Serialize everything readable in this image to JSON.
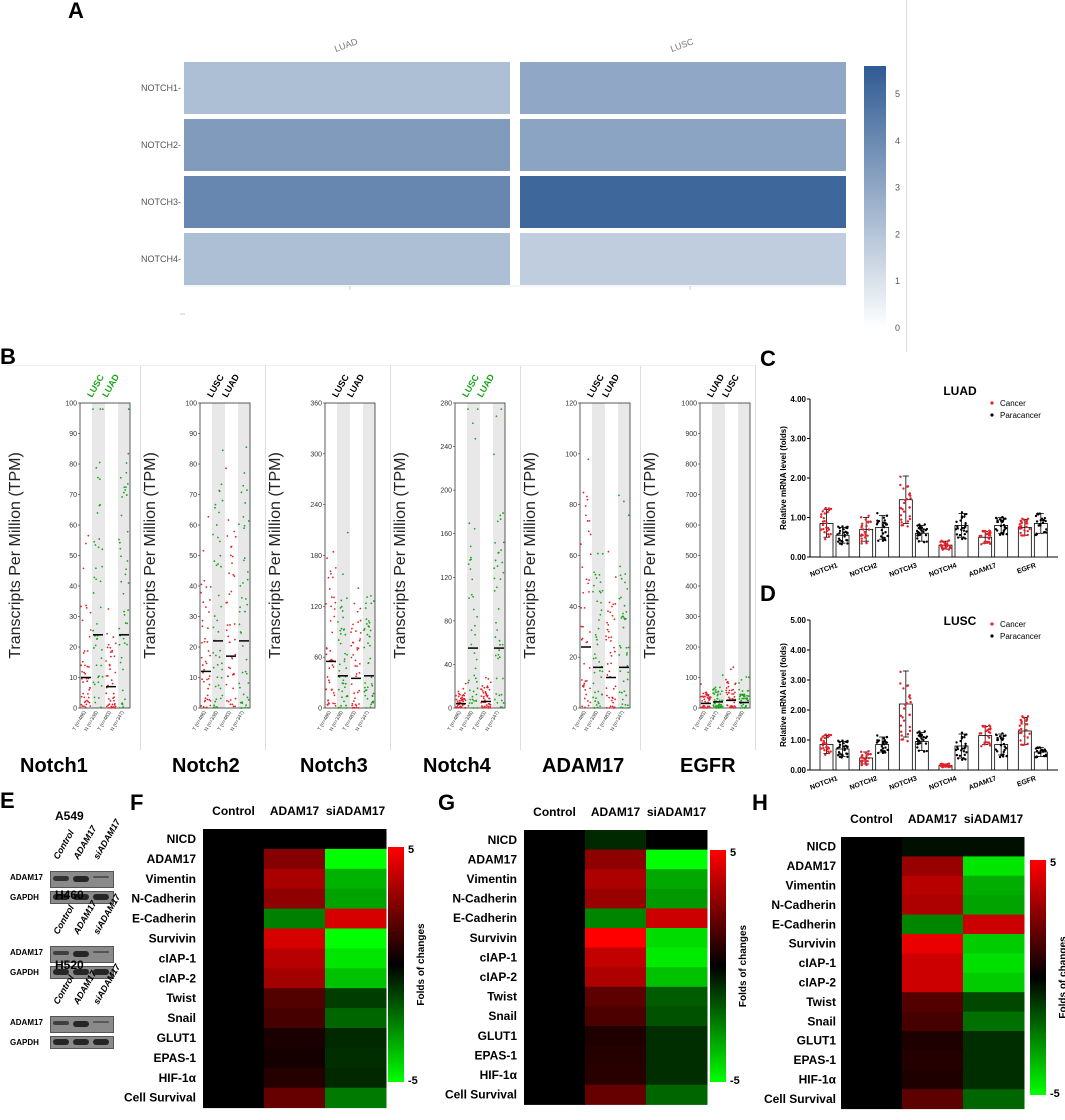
{
  "panel_labels": {
    "A": "A",
    "B": "B",
    "C": "C",
    "D": "D",
    "E": "E",
    "F": "F",
    "G": "G",
    "H": "H"
  },
  "chart_data": [
    {
      "panel": "A",
      "type": "heatmap",
      "columns": [
        "LUAD",
        "LUSC"
      ],
      "rows": [
        "NOTCH1",
        "NOTCH2",
        "NOTCH3",
        "NOTCH4"
      ],
      "values": [
        [
          2.2,
          3.0
        ],
        [
          3.4,
          3.1
        ],
        [
          4.1,
          5.2
        ],
        [
          2.2,
          1.7
        ]
      ],
      "colorbar": {
        "ticks": [
          "5",
          "4",
          "3",
          "2",
          "1",
          "0"
        ],
        "range": [
          0,
          5.6
        ],
        "low_color": "#ffffff",
        "high_color": "#2f5b93"
      }
    },
    {
      "panel": "B",
      "type": "scatter",
      "ylabel": "Transcripts Per Million (TPM)",
      "subplots": [
        {
          "gene": "Notch1",
          "groups": [
            "LUSC",
            "LUAD"
          ],
          "group_color": "#1aa51a",
          "yticks": [
            "0",
            "10",
            "20",
            "30",
            "40",
            "50",
            "60",
            "70",
            "80",
            "90",
            "100"
          ],
          "ymax": 100,
          "medians": [
            10,
            24,
            7,
            24
          ],
          "xticks": [
            "T (n=486)",
            "N (n=338)",
            "T (n=483)",
            "N (n=347)"
          ]
        },
        {
          "gene": "Notch2",
          "groups": [
            "LUSC",
            "LUAD"
          ],
          "group_color": "#000000",
          "yticks": [
            "0",
            "10",
            "20",
            "30",
            "40",
            "50",
            "60",
            "70",
            "80",
            "90",
            "100"
          ],
          "ymax": 100,
          "medians": [
            12,
            22,
            17,
            22
          ],
          "xticks": [
            "T (n=486)",
            "N (n=338)",
            "T (n=483)",
            "N (n=347)"
          ]
        },
        {
          "gene": "Notch3",
          "groups": [
            "LUSC",
            "LUAD"
          ],
          "group_color": "#000000",
          "yticks": [
            "0",
            "60",
            "120",
            "180",
            "240",
            "300",
            "360"
          ],
          "ymax": 360,
          "medians": [
            55,
            38,
            35,
            38
          ],
          "xticks": [
            "T (n=486)",
            "N (n=338)",
            "T (n=483)",
            "N (n=347)"
          ]
        },
        {
          "gene": "Notch4",
          "groups": [
            "LUSC",
            "LUAD"
          ],
          "group_color": "#1aa51a",
          "yticks": [
            "0",
            "40",
            "80",
            "120",
            "160",
            "200",
            "240",
            "280"
          ],
          "ymax": 280,
          "medians": [
            4,
            55,
            6,
            55
          ],
          "xticks": [
            "T (n=486)",
            "N (n=338)",
            "T (n=483)",
            "N (n=347)"
          ]
        },
        {
          "gene": "ADAM17",
          "groups": [
            "LUSC",
            "LUAD"
          ],
          "group_color": "#000000",
          "yticks": [
            "0",
            "20",
            "40",
            "60",
            "80",
            "100",
            "120"
          ],
          "ymax": 120,
          "medians": [
            24,
            16,
            12,
            16
          ],
          "xticks": [
            "T (n=486)",
            "N (n=338)",
            "T (n=483)",
            "N (n=347)"
          ]
        },
        {
          "gene": "EGFR",
          "groups": [
            "LUAD",
            "LUSC"
          ],
          "group_color": "#000000",
          "yticks": [
            "0",
            "100",
            "200",
            "300",
            "400",
            "500",
            "600",
            "700",
            "800",
            "900",
            "1000"
          ],
          "ymax": 1000,
          "medians": [
            15,
            20,
            25,
            18
          ],
          "xticks": [
            "T (n=483)",
            "N (n=347)",
            "T (n=486)",
            "N (n=338)"
          ]
        }
      ]
    },
    {
      "panel": "C",
      "type": "bar",
      "title": "LUAD",
      "ylabel": "Relative mRNA level (folds)",
      "categories": [
        "NOTCH1",
        "NOTCH2",
        "NOTCH3",
        "NOTCH4",
        "ADAM17",
        "EGFR"
      ],
      "yticks": [
        "0.00",
        "1.00",
        "2.00",
        "3.00",
        "4.00"
      ],
      "ylim": [
        0,
        4
      ],
      "series": [
        {
          "name": "Cancer",
          "color": "#e8202a",
          "values": [
            0.85,
            0.7,
            1.45,
            0.3,
            0.5,
            0.75
          ],
          "errors": [
            0.35,
            0.3,
            0.6,
            0.1,
            0.15,
            0.2
          ]
        },
        {
          "name": "Paracancer",
          "color": "#000000",
          "values": [
            0.55,
            0.75,
            0.6,
            0.8,
            0.8,
            0.85
          ],
          "errors": [
            0.2,
            0.3,
            0.2,
            0.3,
            0.2,
            0.25
          ]
        }
      ]
    },
    {
      "panel": "D",
      "type": "bar",
      "title": "LUSC",
      "ylabel": "Relative mRNA level (folds)",
      "categories": [
        "NOTCH1",
        "NOTCH2",
        "NOTCH3",
        "NOTCH4",
        "ADAM17",
        "EGFR"
      ],
      "yticks": [
        "0.00",
        "1.00",
        "2.00",
        "3.00",
        "4.00",
        "5.00"
      ],
      "ylim": [
        0,
        5
      ],
      "series": [
        {
          "name": "Cancer",
          "color": "#e8202a",
          "values": [
            0.85,
            0.4,
            2.2,
            0.15,
            1.15,
            1.3
          ],
          "errors": [
            0.3,
            0.2,
            1.1,
            0.05,
            0.3,
            0.45
          ]
        },
        {
          "name": "Paracancer",
          "color": "#000000",
          "values": [
            0.7,
            0.85,
            0.95,
            0.8,
            0.85,
            0.6
          ],
          "errors": [
            0.25,
            0.25,
            0.3,
            0.4,
            0.35,
            0.15
          ]
        }
      ]
    },
    {
      "panel": "F",
      "type": "heatmap",
      "columns": [
        "Control",
        "ADAM17",
        "siADAM17"
      ],
      "rows": [
        "NICD",
        "ADAM17",
        "Vimentin",
        "N-Cadherin",
        "E-Cadherin",
        "Survivin",
        "cIAP-1",
        "cIAP-2",
        "Twist",
        "Snail",
        "GLUT1",
        "EPAS-1",
        "HIF-1α",
        "Cell Survival"
      ],
      "values": [
        [
          0,
          0,
          0
        ],
        [
          0,
          2.6,
          -5
        ],
        [
          0,
          3.3,
          -3.5
        ],
        [
          0,
          2.8,
          -3.2
        ],
        [
          0,
          -2.5,
          4.2
        ],
        [
          0,
          4.2,
          -5
        ],
        [
          0,
          3.6,
          -4.5
        ],
        [
          0,
          3.2,
          -3.8
        ],
        [
          0,
          1.6,
          -1.2
        ],
        [
          0,
          1.4,
          -2.0
        ],
        [
          0,
          0.5,
          -0.8
        ],
        [
          0,
          0.4,
          -0.9
        ],
        [
          0,
          0.7,
          -0.8
        ],
        [
          0,
          2.0,
          -2.4
        ]
      ],
      "colorbar": {
        "title": "Folds of changes",
        "max_label": "5",
        "min_label": "-5",
        "range": [
          -5,
          5
        ]
      }
    },
    {
      "panel": "G",
      "type": "heatmap",
      "columns": [
        "Control",
        "ADAM17",
        "siADAM17"
      ],
      "rows": [
        "NICD",
        "ADAM17",
        "Vimentin",
        "N-Cadherin",
        "E-Cadherin",
        "Survivin",
        "cIAP-1",
        "cIAP-2",
        "Twist",
        "Snail",
        "GLUT1",
        "EPAS-1",
        "HIF-1α",
        "Cell Survival"
      ],
      "values": [
        [
          0,
          -0.8,
          0
        ],
        [
          0,
          2.8,
          -5
        ],
        [
          0,
          3.4,
          -3.3
        ],
        [
          0,
          3.0,
          -3.0
        ],
        [
          0,
          -2.6,
          4.0
        ],
        [
          0,
          5,
          -4.3
        ],
        [
          0,
          3.8,
          -4.6
        ],
        [
          0,
          3.4,
          -3.8
        ],
        [
          0,
          1.8,
          -1.8
        ],
        [
          0,
          1.5,
          -1.6
        ],
        [
          0,
          0.6,
          -0.9
        ],
        [
          0,
          0.7,
          -0.9
        ],
        [
          0,
          0.8,
          -0.9
        ],
        [
          0,
          2.0,
          -2.0
        ]
      ],
      "colorbar": {
        "title": "Folds of changes",
        "max_label": "5",
        "min_label": "-5",
        "range": [
          -5,
          5
        ]
      }
    },
    {
      "panel": "H",
      "type": "heatmap",
      "columns": [
        "Control",
        "ADAM17",
        "siADAM17"
      ],
      "rows": [
        "NICD",
        "ADAM17",
        "Vimentin",
        "N-Cadherin",
        "E-Cadherin",
        "Survivin",
        "cIAP-1",
        "cIAP-2",
        "Twist",
        "Snail",
        "GLUT1",
        "EPAS-1",
        "HIF-1α",
        "Cell Survival"
      ],
      "values": [
        [
          0,
          -0.3,
          -0.3
        ],
        [
          0,
          3.0,
          -4.5
        ],
        [
          0,
          3.6,
          -3.4
        ],
        [
          0,
          3.4,
          -3.2
        ],
        [
          0,
          -2.6,
          4.0
        ],
        [
          0,
          4.6,
          -4.0
        ],
        [
          0,
          4.0,
          -4.4
        ],
        [
          0,
          4.0,
          -4.0
        ],
        [
          0,
          1.6,
          -1.4
        ],
        [
          0,
          1.4,
          -2.2
        ],
        [
          0,
          0.6,
          -0.9
        ],
        [
          0,
          0.7,
          -0.9
        ],
        [
          0,
          0.6,
          -0.9
        ],
        [
          0,
          1.8,
          -2.0
        ]
      ],
      "colorbar": {
        "title": "Folds of changes",
        "max_label": "5",
        "min_label": "-5",
        "range": [
          -5,
          5
        ]
      }
    }
  ],
  "western_blots": [
    {
      "cell_line": "A549",
      "lanes": [
        "Control",
        "ADAM17",
        "siADAM17"
      ],
      "rows": [
        "ADAM17",
        "GAPDH"
      ],
      "adam17_levels": [
        0.8,
        1.0,
        0.3
      ]
    },
    {
      "cell_line": "H460",
      "lanes": [
        "Control",
        "ADAM17",
        "siADAM17"
      ],
      "rows": [
        "ADAM17",
        "GAPDH"
      ],
      "adam17_levels": [
        0.6,
        1.0,
        0.3
      ]
    },
    {
      "cell_line": "H520",
      "lanes": [
        "Control",
        "ADAM17",
        "siADAM17"
      ],
      "rows": [
        "ADAM17",
        "GAPDH"
      ],
      "adam17_levels": [
        0.6,
        1.0,
        0.2
      ]
    }
  ]
}
